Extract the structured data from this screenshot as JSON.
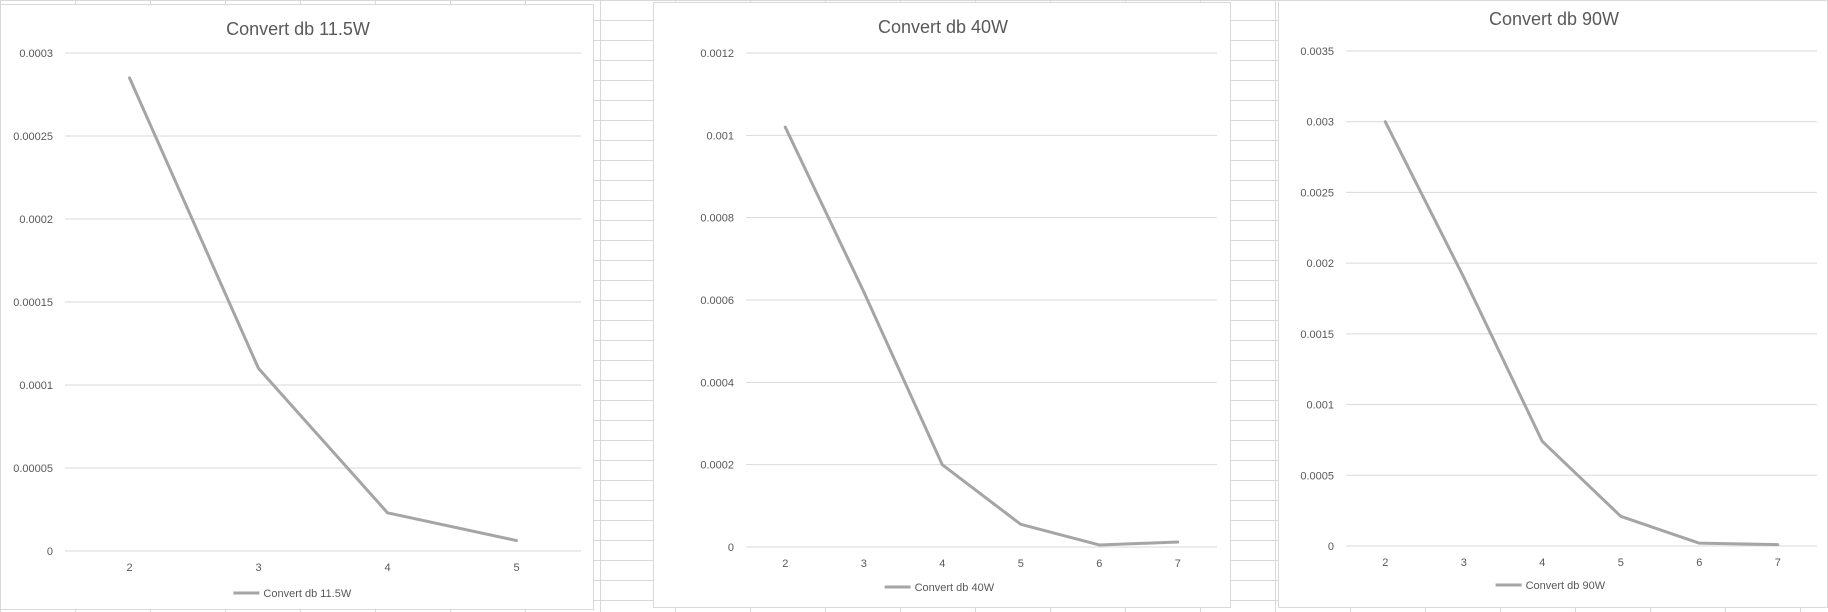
{
  "chart_data": [
    {
      "type": "line",
      "title": "Convert db 11.5W",
      "x": [
        "2",
        "3",
        "4",
        "5"
      ],
      "series": [
        {
          "name": "Convert db 11.5W",
          "values": [
            0.000285,
            0.00011,
            2.3e-05,
            6.3e-06
          ]
        }
      ],
      "ylim": [
        0,
        0.0003
      ],
      "y_ticks": [
        "0",
        "0.00005",
        "0.0001",
        "0.00015",
        "0.0002",
        "0.00025",
        "0.0003"
      ],
      "xlabel": "",
      "ylabel": "",
      "grid": "horizontal",
      "legend": "bottom",
      "color": "#a5a5a5"
    },
    {
      "type": "line",
      "title": "Convert db 40W",
      "x": [
        "2",
        "3",
        "4",
        "5",
        "6",
        "7"
      ],
      "series": [
        {
          "name": "Convert db 40W",
          "values": [
            0.00102,
            0.00062,
            0.0002,
            5.5e-05,
            5e-06,
            1.2e-05
          ]
        }
      ],
      "ylim": [
        0,
        0.0012
      ],
      "y_ticks": [
        "0",
        "0.0002",
        "0.0004",
        "0.0006",
        "0.0008",
        "0.001",
        "0.0012"
      ],
      "xlabel": "",
      "ylabel": "",
      "grid": "horizontal",
      "legend": "bottom",
      "color": "#a5a5a5"
    },
    {
      "type": "line",
      "title": "Convert db 90W",
      "x": [
        "2",
        "3",
        "4",
        "5",
        "6",
        "7"
      ],
      "series": [
        {
          "name": "Convert db 90W",
          "values": [
            0.003,
            0.0019,
            0.00074,
            0.00021,
            2e-05,
            1e-05
          ]
        }
      ],
      "ylim": [
        0,
        0.0035
      ],
      "y_ticks": [
        "0",
        "0.0005",
        "0.001",
        "0.0015",
        "0.002",
        "0.0025",
        "0.003",
        "0.0035"
      ],
      "xlabel": "",
      "ylabel": "",
      "grid": "horizontal",
      "legend": "bottom",
      "color": "#a5a5a5"
    }
  ]
}
